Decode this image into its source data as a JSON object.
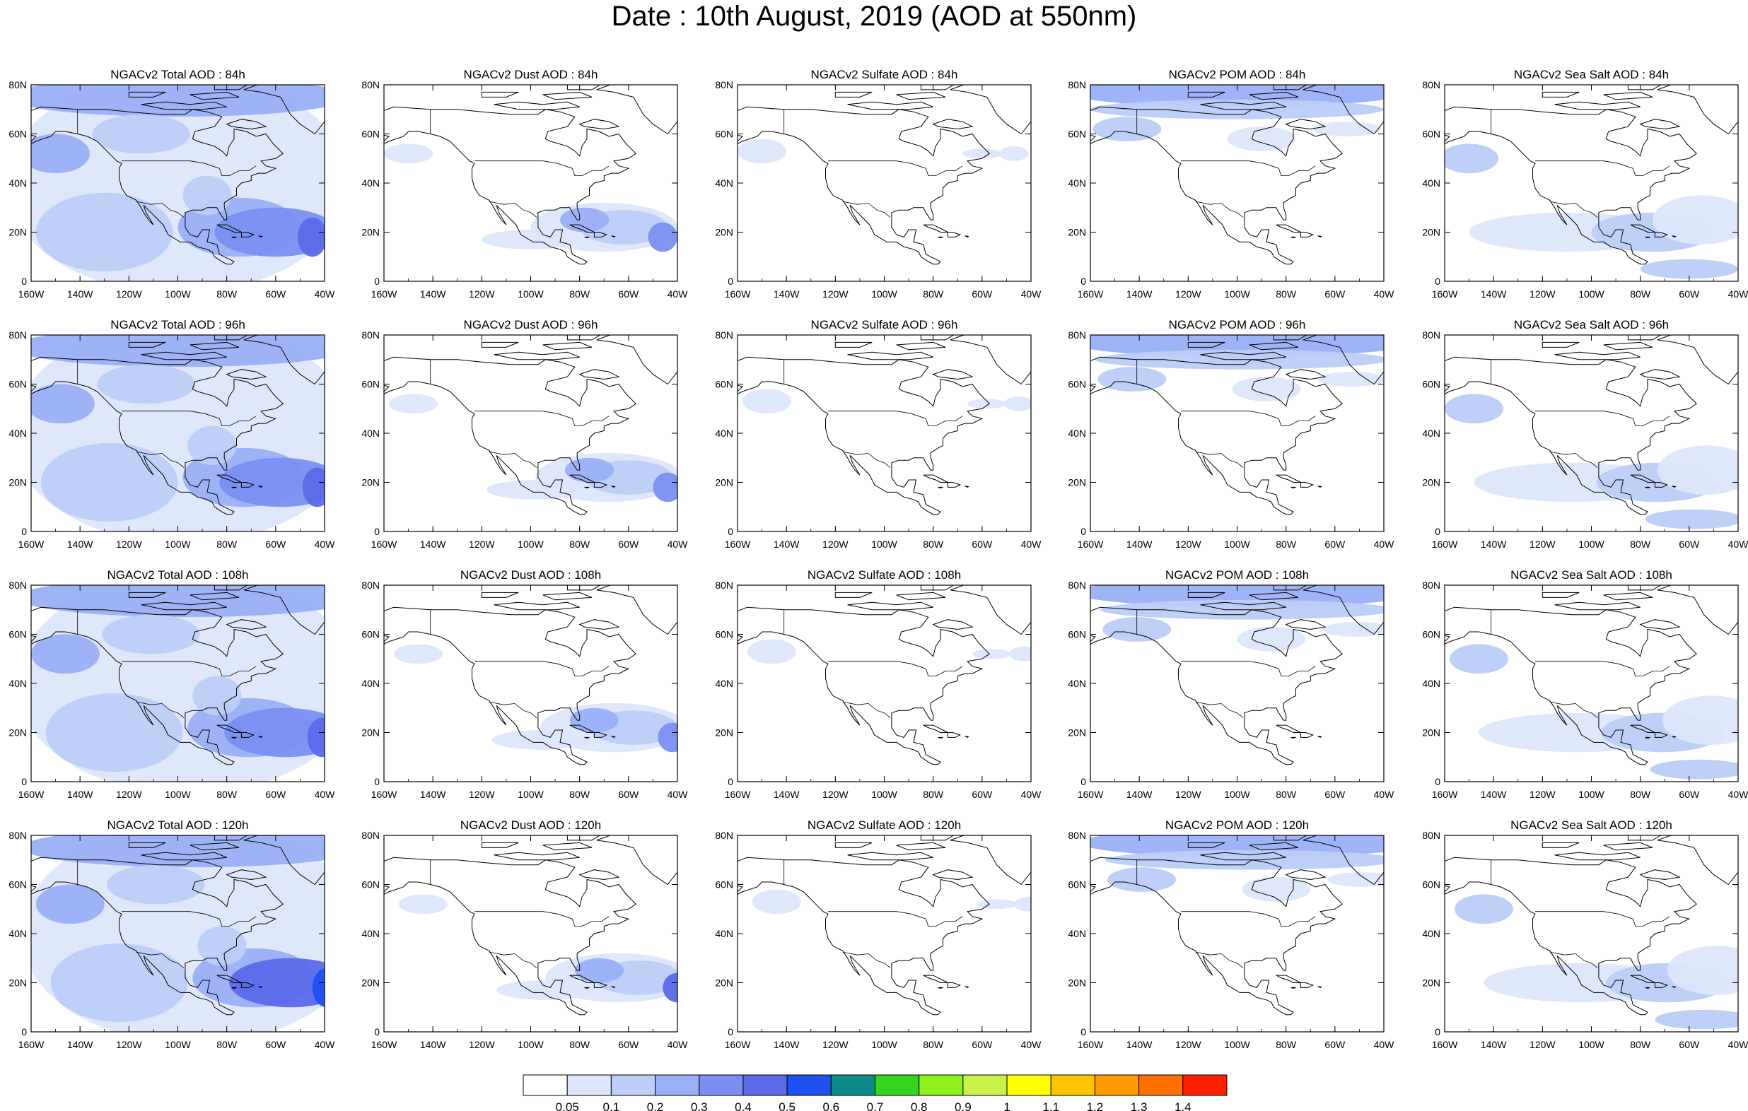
{
  "title": "Date : 10th August, 2019 (AOD at 550nm)",
  "species": [
    "Total",
    "Dust",
    "Sulfate",
    "POM",
    "Sea Salt"
  ],
  "rows": [
    {
      "lead": "84h",
      "titles": [
        "NGACv2 Total AOD : 84h",
        "NGACv2 Dust AOD : 84h",
        "NGACv2 Sulfate AOD : 84h",
        "NGACv2 POM AOD : 84h",
        "NGACv2 Sea Salt AOD : 84h"
      ]
    },
    {
      "lead": "96h",
      "titles": [
        "NGACv2 Total AOD : 96h",
        "NGACv2 Dust AOD : 96h",
        "NGACv2 Sulfate AOD : 96h",
        "NGACv2 POM AOD : 96h",
        "NGACv2 Sea Salt AOD : 96h"
      ]
    },
    {
      "lead": "108h",
      "titles": [
        "NGACv2 Total AOD : 108h",
        "NGACv2 Dust AOD : 108h",
        "NGACv2 Sulfate AOD : 108h",
        "NGACv2 POM AOD : 108h",
        "NGACv2 Sea Salt  AOD : 108h"
      ]
    },
    {
      "lead": "120h",
      "titles": [
        "NGACv2 Total AOD : 120h",
        "NGACv2 Dust AOD : 120h",
        "NGACv2 Sulfate AOD : 120h",
        "NGACv2 POM AOD : 120h",
        "NGACv2 Sea Salt  AOD : 120h"
      ]
    }
  ],
  "lon_ticks": [
    "160W",
    "140W",
    "120W",
    "100W",
    "80W",
    "60W",
    "40W"
  ],
  "lat_ticks": [
    "0",
    "20N",
    "40N",
    "60N",
    "80N"
  ],
  "lon_range": [
    -160,
    -40
  ],
  "lat_range": [
    0,
    80
  ],
  "colorbar": {
    "colors": [
      "#ffffff",
      "#dde6fb",
      "#bccdf8",
      "#9ab0f5",
      "#7a8ff1",
      "#5b6ae9",
      "#1e50f0",
      "#0d8a8a",
      "#33d61c",
      "#8ef21a",
      "#c8f24a",
      "#ffff00",
      "#ffc400",
      "#ff9a00",
      "#ff7000",
      "#ff2000"
    ],
    "labels": [
      "0.05",
      "0.1",
      "0.2",
      "0.3",
      "0.4",
      "0.5",
      "0.6",
      "0.7",
      "0.8",
      "0.9",
      "1",
      "1.1",
      "1.2",
      "1.3",
      "1.4"
    ]
  },
  "land_color": "#ffffff",
  "coast_color": "#000000"
}
